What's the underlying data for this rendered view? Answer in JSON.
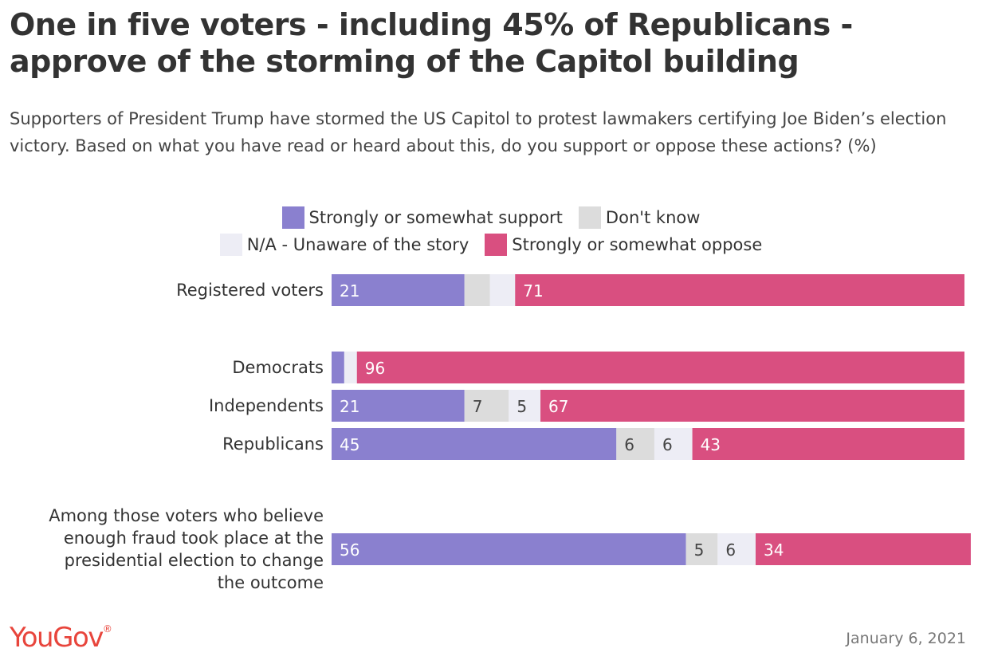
{
  "title": "One in five voters - including 45% of Republicans - approve of the storming of the Capitol building",
  "subtitle": "Supporters of President Trump have stormed the US Capitol to protest lawmakers certifying Joe Biden’s election victory. Based on what you have read or heard about this, do you support or oppose these actions? (%)",
  "legend": {
    "support": "Strongly or somewhat support",
    "dont_know": "Don't know",
    "na": "N/A - Unaware of the story",
    "oppose": "Strongly or somewhat oppose"
  },
  "colors": {
    "support": "#8a80cf",
    "dont_know": "#dcdcdc",
    "na": "#ededf5",
    "oppose": "#d94f80"
  },
  "chart_data": {
    "type": "bar",
    "orientation": "horizontal",
    "stacked": true,
    "legend_position": "top-center",
    "grid": false,
    "categories": [
      "Registered voters",
      "Democrats",
      "Independents",
      "Republicans",
      "Among those voters who believe enough fraud took place at the presidential election to change the outcome"
    ],
    "series": [
      {
        "name": "Strongly or somewhat support",
        "key": "support",
        "values": [
          21,
          2,
          21,
          45,
          56
        ],
        "labels": [
          "21",
          "",
          "21",
          "45",
          "56"
        ]
      },
      {
        "name": "Don't know",
        "key": "dont_know",
        "values": [
          4,
          0,
          7,
          6,
          5
        ],
        "labels": [
          "",
          "",
          "7",
          "6",
          "5"
        ]
      },
      {
        "name": "N/A - Unaware of the story",
        "key": "na",
        "values": [
          4,
          2,
          5,
          6,
          6
        ],
        "labels": [
          "",
          "",
          "5",
          "6",
          "6"
        ]
      },
      {
        "name": "Strongly or somewhat oppose",
        "key": "oppose",
        "values": [
          71,
          96,
          67,
          43,
          34
        ],
        "labels": [
          "71",
          "96",
          "67",
          "43",
          "34"
        ]
      }
    ],
    "xlim": [
      0,
      100
    ]
  },
  "footer": {
    "logo": "YouGov",
    "logo_mark": "®",
    "date": "January 6, 2021"
  }
}
